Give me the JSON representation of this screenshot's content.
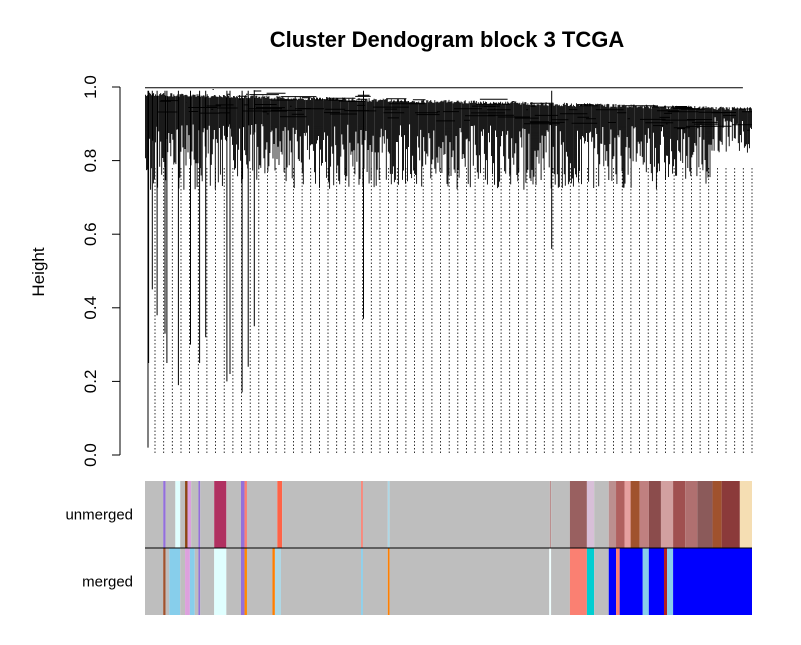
{
  "chart_data": {
    "type": "dendrogram",
    "title": "Cluster Dendogram block 3 TCGA",
    "ylabel": "Height",
    "ylim": [
      0.0,
      1.0
    ],
    "yticks": [
      "0.0",
      "0.2",
      "0.4",
      "0.6",
      "0.8",
      "1.0"
    ],
    "color_rows": [
      {
        "label": "unmerged",
        "segments": [
          {
            "from": 0.0,
            "to": 0.03,
            "color": "#bebebe"
          },
          {
            "from": 0.03,
            "to": 0.034,
            "color": "#9370db"
          },
          {
            "from": 0.034,
            "to": 0.05,
            "color": "#bebebe"
          },
          {
            "from": 0.05,
            "to": 0.058,
            "color": "#e0ffff"
          },
          {
            "from": 0.058,
            "to": 0.066,
            "color": "#bebebe"
          },
          {
            "from": 0.066,
            "to": 0.07,
            "color": "#8b4513"
          },
          {
            "from": 0.07,
            "to": 0.076,
            "color": "#dda0dd"
          },
          {
            "from": 0.076,
            "to": 0.088,
            "color": "#bebebe"
          },
          {
            "from": 0.088,
            "to": 0.091,
            "color": "#9370db"
          },
          {
            "from": 0.091,
            "to": 0.114,
            "color": "#bebebe"
          },
          {
            "from": 0.114,
            "to": 0.134,
            "color": "#b03060"
          },
          {
            "from": 0.134,
            "to": 0.158,
            "color": "#bebebe"
          },
          {
            "from": 0.158,
            "to": 0.164,
            "color": "#9370db"
          },
          {
            "from": 0.164,
            "to": 0.168,
            "color": "#fa8072"
          },
          {
            "from": 0.168,
            "to": 0.218,
            "color": "#bebebe"
          },
          {
            "from": 0.218,
            "to": 0.226,
            "color": "#ff6347"
          },
          {
            "from": 0.226,
            "to": 0.356,
            "color": "#bebebe"
          },
          {
            "from": 0.356,
            "to": 0.359,
            "color": "#fa8072"
          },
          {
            "from": 0.359,
            "to": 0.4,
            "color": "#bebebe"
          },
          {
            "from": 0.4,
            "to": 0.403,
            "color": "#add8e6"
          },
          {
            "from": 0.403,
            "to": 0.667,
            "color": "#bebebe"
          },
          {
            "from": 0.667,
            "to": 0.669,
            "color": "#bc8f8f"
          },
          {
            "from": 0.669,
            "to": 0.7,
            "color": "#bebebe"
          },
          {
            "from": 0.7,
            "to": 0.728,
            "color": "#996060"
          },
          {
            "from": 0.728,
            "to": 0.74,
            "color": "#d8bfd8"
          },
          {
            "from": 0.74,
            "to": 0.764,
            "color": "#bebebe"
          },
          {
            "from": 0.764,
            "to": 0.776,
            "color": "#bc8f8f"
          },
          {
            "from": 0.776,
            "to": 0.79,
            "color": "#b0605f"
          },
          {
            "from": 0.79,
            "to": 0.8,
            "color": "#e6a0a0"
          },
          {
            "from": 0.8,
            "to": 0.815,
            "color": "#a0522d"
          },
          {
            "from": 0.815,
            "to": 0.83,
            "color": "#c08080"
          },
          {
            "from": 0.83,
            "to": 0.85,
            "color": "#8b4c4c"
          },
          {
            "from": 0.85,
            "to": 0.87,
            "color": "#d2a0a0"
          },
          {
            "from": 0.87,
            "to": 0.89,
            "color": "#a05050"
          },
          {
            "from": 0.89,
            "to": 0.91,
            "color": "#b07070"
          },
          {
            "from": 0.91,
            "to": 0.935,
            "color": "#8b5a5a"
          },
          {
            "from": 0.935,
            "to": 0.95,
            "color": "#a0522d"
          },
          {
            "from": 0.95,
            "to": 0.98,
            "color": "#8b3a3a"
          },
          {
            "from": 0.98,
            "to": 1.0,
            "color": "#f5deb3"
          }
        ]
      },
      {
        "label": "merged",
        "segments": [
          {
            "from": 0.0,
            "to": 0.03,
            "color": "#bebebe"
          },
          {
            "from": 0.03,
            "to": 0.034,
            "color": "#a0522d"
          },
          {
            "from": 0.034,
            "to": 0.04,
            "color": "#bebebe"
          },
          {
            "from": 0.04,
            "to": 0.058,
            "color": "#87ceeb"
          },
          {
            "from": 0.058,
            "to": 0.066,
            "color": "#bebebe"
          },
          {
            "from": 0.066,
            "to": 0.074,
            "color": "#dda0dd"
          },
          {
            "from": 0.074,
            "to": 0.082,
            "color": "#87ceeb"
          },
          {
            "from": 0.082,
            "to": 0.088,
            "color": "#bebebe"
          },
          {
            "from": 0.088,
            "to": 0.091,
            "color": "#9370db"
          },
          {
            "from": 0.091,
            "to": 0.114,
            "color": "#bebebe"
          },
          {
            "from": 0.114,
            "to": 0.134,
            "color": "#e0ffff"
          },
          {
            "from": 0.134,
            "to": 0.158,
            "color": "#bebebe"
          },
          {
            "from": 0.158,
            "to": 0.164,
            "color": "#9370db"
          },
          {
            "from": 0.164,
            "to": 0.168,
            "color": "#ff8c00"
          },
          {
            "from": 0.168,
            "to": 0.21,
            "color": "#bebebe"
          },
          {
            "from": 0.21,
            "to": 0.214,
            "color": "#ff7f00"
          },
          {
            "from": 0.214,
            "to": 0.224,
            "color": "#add8e6"
          },
          {
            "from": 0.224,
            "to": 0.356,
            "color": "#bebebe"
          },
          {
            "from": 0.356,
            "to": 0.359,
            "color": "#87ceeb"
          },
          {
            "from": 0.359,
            "to": 0.4,
            "color": "#bebebe"
          },
          {
            "from": 0.4,
            "to": 0.403,
            "color": "#ff7f00"
          },
          {
            "from": 0.403,
            "to": 0.666,
            "color": "#bebebe"
          },
          {
            "from": 0.666,
            "to": 0.669,
            "color": "#f0ffff"
          },
          {
            "from": 0.669,
            "to": 0.7,
            "color": "#bebebe"
          },
          {
            "from": 0.7,
            "to": 0.728,
            "color": "#fa8072"
          },
          {
            "from": 0.728,
            "to": 0.74,
            "color": "#00ced1"
          },
          {
            "from": 0.74,
            "to": 0.764,
            "color": "#bebebe"
          },
          {
            "from": 0.764,
            "to": 0.776,
            "color": "#0000ff"
          },
          {
            "from": 0.776,
            "to": 0.782,
            "color": "#fa8072"
          },
          {
            "from": 0.782,
            "to": 0.82,
            "color": "#0000ff"
          },
          {
            "from": 0.82,
            "to": 0.83,
            "color": "#87ceeb"
          },
          {
            "from": 0.83,
            "to": 0.855,
            "color": "#0000ff"
          },
          {
            "from": 0.855,
            "to": 0.86,
            "color": "#b22222"
          },
          {
            "from": 0.86,
            "to": 0.87,
            "color": "#87ceeb"
          },
          {
            "from": 0.87,
            "to": 1.0,
            "color": "#0000ff"
          }
        ]
      }
    ],
    "grid": false,
    "legend": "none"
  },
  "colors": {
    "axis": "#000000",
    "background": "#ffffff"
  }
}
